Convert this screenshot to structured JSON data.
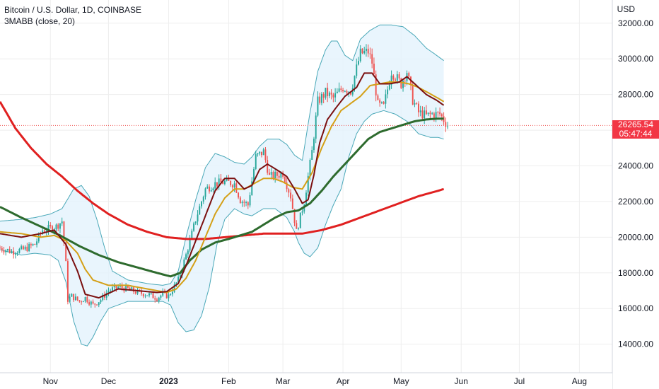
{
  "header": {
    "symbol_line": "Bitcoin / U.S. Dollar, 1D, COINBASE",
    "indicator_line": "3MABB (close, 20)"
  },
  "currency_label": "USD",
  "price_tag": {
    "price": "26265.54",
    "countdown": "05:47:44",
    "color": "#f23645"
  },
  "colors": {
    "band_fill": "#e3f2fd",
    "band_line": "#4aa8b8",
    "ma_fast": "#7b1010",
    "ma_mid": "#d4a017",
    "ma_long": "#2e6b2e",
    "ma_200": "#e02020",
    "candle_up": "#26a69a",
    "candle_down": "#ef5350",
    "grid": "#eeeeee"
  },
  "chart_data": {
    "type": "candlestick",
    "title": "Bitcoin / U.S. Dollar, 1D, COINBASE",
    "ylabel": "USD",
    "ylim": [
      12400,
      33300
    ],
    "y_ticks": [
      "32000.00",
      "30000.00",
      "28000.00",
      "26000.00",
      "24000.00",
      "22000.00",
      "20000.00",
      "18000.00",
      "16000.00",
      "14000.00"
    ],
    "x_ticks": [
      {
        "label": "Nov",
        "day": 0
      },
      {
        "label": "Dec",
        "day": 30
      },
      {
        "label": "2023",
        "day": 61
      },
      {
        "label": "Feb",
        "day": 92
      },
      {
        "label": "Mar",
        "day": 120
      },
      {
        "label": "Apr",
        "day": 151
      },
      {
        "label": "May",
        "day": 181
      },
      {
        "label": "Jun",
        "day": 212
      },
      {
        "label": "Jul",
        "day": 242
      },
      {
        "label": "Aug",
        "day": 273
      }
    ],
    "x_range_days": [
      -26,
      290
    ],
    "last_price": 26265.54,
    "close_anchors": [
      [
        -26,
        19400
      ],
      [
        -20,
        19200
      ],
      [
        -14,
        19300
      ],
      [
        -8,
        19600
      ],
      [
        -4,
        20400
      ],
      [
        0,
        20500
      ],
      [
        3,
        20600
      ],
      [
        6,
        20900
      ],
      [
        8,
        18500
      ],
      [
        9,
        16500
      ],
      [
        11,
        16700
      ],
      [
        15,
        16400
      ],
      [
        18,
        16600
      ],
      [
        22,
        16200
      ],
      [
        26,
        16500
      ],
      [
        30,
        17000
      ],
      [
        35,
        17200
      ],
      [
        40,
        17100
      ],
      [
        45,
        16900
      ],
      [
        50,
        16800
      ],
      [
        55,
        16600
      ],
      [
        58,
        16800
      ],
      [
        61,
        16700
      ],
      [
        66,
        17600
      ],
      [
        70,
        19000
      ],
      [
        75,
        21000
      ],
      [
        80,
        22700
      ],
      [
        85,
        23000
      ],
      [
        90,
        23100
      ],
      [
        95,
        23000
      ],
      [
        98,
        22100
      ],
      [
        102,
        21800
      ],
      [
        106,
        24500
      ],
      [
        110,
        24800
      ],
      [
        113,
        23400
      ],
      [
        118,
        23500
      ],
      [
        120,
        23600
      ],
      [
        124,
        22300
      ],
      [
        127,
        20300
      ],
      [
        131,
        22000
      ],
      [
        135,
        24800
      ],
      [
        138,
        27600
      ],
      [
        142,
        28100
      ],
      [
        146,
        27800
      ],
      [
        151,
        28400
      ],
      [
        155,
        28200
      ],
      [
        160,
        30300
      ],
      [
        164,
        30400
      ],
      [
        166,
        29800
      ],
      [
        169,
        27400
      ],
      [
        172,
        27300
      ],
      [
        176,
        29300
      ],
      [
        181,
        28600
      ],
      [
        184,
        29300
      ],
      [
        187,
        27700
      ],
      [
        190,
        27000
      ],
      [
        194,
        26800
      ],
      [
        197,
        26900
      ],
      [
        201,
        26900
      ],
      [
        205,
        26265
      ]
    ],
    "series": [
      {
        "name": "",
        "key": "ma_fast",
        "points": [
          [
            -26,
            20200
          ],
          [
            -15,
            20000
          ],
          [
            -5,
            20200
          ],
          [
            2,
            20400
          ],
          [
            8,
            19600
          ],
          [
            14,
            18100
          ],
          [
            18,
            16800
          ],
          [
            25,
            16600
          ],
          [
            35,
            17100
          ],
          [
            45,
            17000
          ],
          [
            55,
            16900
          ],
          [
            60,
            16950
          ],
          [
            66,
            17400
          ],
          [
            70,
            18400
          ],
          [
            75,
            19800
          ],
          [
            80,
            21200
          ],
          [
            85,
            22600
          ],
          [
            90,
            23300
          ],
          [
            95,
            23300
          ],
          [
            100,
            22700
          ],
          [
            104,
            22900
          ],
          [
            108,
            23800
          ],
          [
            112,
            24100
          ],
          [
            118,
            23700
          ],
          [
            122,
            23400
          ],
          [
            126,
            22700
          ],
          [
            130,
            21900
          ],
          [
            133,
            22100
          ],
          [
            136,
            23500
          ],
          [
            139,
            25300
          ],
          [
            143,
            26600
          ],
          [
            147,
            27200
          ],
          [
            152,
            27900
          ],
          [
            158,
            28400
          ],
          [
            162,
            29200
          ],
          [
            166,
            29200
          ],
          [
            170,
            28600
          ],
          [
            175,
            28600
          ],
          [
            180,
            28700
          ],
          [
            184,
            29000
          ],
          [
            189,
            28500
          ],
          [
            194,
            28000
          ],
          [
            199,
            27700
          ],
          [
            203,
            27400
          ]
        ]
      },
      {
        "name": "",
        "key": "ma_mid",
        "points": [
          [
            -26,
            20300
          ],
          [
            -15,
            20200
          ],
          [
            -5,
            20000
          ],
          [
            2,
            20100
          ],
          [
            8,
            19800
          ],
          [
            14,
            19100
          ],
          [
            18,
            18200
          ],
          [
            22,
            17600
          ],
          [
            30,
            17300
          ],
          [
            40,
            17300
          ],
          [
            50,
            17100
          ],
          [
            55,
            17000
          ],
          [
            60,
            16900
          ],
          [
            65,
            17100
          ],
          [
            70,
            17700
          ],
          [
            75,
            18700
          ],
          [
            80,
            20000
          ],
          [
            85,
            21300
          ],
          [
            90,
            22200
          ],
          [
            95,
            22700
          ],
          [
            100,
            22700
          ],
          [
            105,
            23000
          ],
          [
            110,
            23300
          ],
          [
            115,
            23300
          ],
          [
            120,
            23100
          ],
          [
            125,
            22800
          ],
          [
            130,
            22700
          ],
          [
            135,
            23600
          ],
          [
            140,
            25000
          ],
          [
            145,
            26200
          ],
          [
            150,
            27100
          ],
          [
            155,
            27500
          ],
          [
            160,
            27900
          ],
          [
            165,
            28500
          ],
          [
            170,
            28600
          ],
          [
            175,
            28700
          ],
          [
            180,
            28700
          ],
          [
            185,
            28600
          ],
          [
            190,
            28400
          ],
          [
            195,
            28100
          ],
          [
            200,
            27800
          ],
          [
            203,
            27600
          ]
        ]
      },
      {
        "name": "",
        "key": "ma_long",
        "points": [
          [
            -26,
            21700
          ],
          [
            -15,
            21100
          ],
          [
            -5,
            20600
          ],
          [
            5,
            20100
          ],
          [
            15,
            19500
          ],
          [
            25,
            19000
          ],
          [
            35,
            18600
          ],
          [
            45,
            18300
          ],
          [
            55,
            18000
          ],
          [
            62,
            17800
          ],
          [
            67,
            18000
          ],
          [
            72,
            18700
          ],
          [
            78,
            19300
          ],
          [
            85,
            19700
          ],
          [
            92,
            19900
          ],
          [
            98,
            20100
          ],
          [
            104,
            20300
          ],
          [
            110,
            20700
          ],
          [
            116,
            21100
          ],
          [
            122,
            21400
          ],
          [
            128,
            21500
          ],
          [
            134,
            21900
          ],
          [
            140,
            22600
          ],
          [
            146,
            23400
          ],
          [
            152,
            24100
          ],
          [
            158,
            24800
          ],
          [
            164,
            25500
          ],
          [
            170,
            25900
          ],
          [
            176,
            26100
          ],
          [
            182,
            26300
          ],
          [
            188,
            26500
          ],
          [
            194,
            26600
          ],
          [
            200,
            26650
          ],
          [
            203,
            26650
          ]
        ]
      },
      {
        "name": "",
        "key": "ma_200",
        "points": [
          [
            -26,
            27600
          ],
          [
            -18,
            26100
          ],
          [
            -10,
            25000
          ],
          [
            -2,
            24100
          ],
          [
            6,
            23400
          ],
          [
            14,
            22600
          ],
          [
            22,
            21900
          ],
          [
            30,
            21300
          ],
          [
            40,
            20700
          ],
          [
            50,
            20300
          ],
          [
            60,
            20000
          ],
          [
            70,
            19900
          ],
          [
            80,
            19900
          ],
          [
            90,
            20000
          ],
          [
            100,
            20100
          ],
          [
            110,
            20200
          ],
          [
            120,
            20200
          ],
          [
            130,
            20200
          ],
          [
            140,
            20400
          ],
          [
            150,
            20700
          ],
          [
            160,
            21100
          ],
          [
            170,
            21500
          ],
          [
            180,
            21900
          ],
          [
            190,
            22300
          ],
          [
            200,
            22600
          ],
          [
            203,
            22700
          ]
        ]
      },
      {
        "name": "",
        "key": "band_upper",
        "points": [
          [
            -26,
            20900
          ],
          [
            -15,
            21000
          ],
          [
            -8,
            21100
          ],
          [
            0,
            21300
          ],
          [
            6,
            21600
          ],
          [
            12,
            22700
          ],
          [
            16,
            22900
          ],
          [
            20,
            22300
          ],
          [
            24,
            21000
          ],
          [
            28,
            19400
          ],
          [
            32,
            18100
          ],
          [
            40,
            17600
          ],
          [
            50,
            17400
          ],
          [
            58,
            17300
          ],
          [
            62,
            17400
          ],
          [
            66,
            18100
          ],
          [
            70,
            20000
          ],
          [
            75,
            22100
          ],
          [
            80,
            23900
          ],
          [
            85,
            24700
          ],
          [
            90,
            24500
          ],
          [
            95,
            24200
          ],
          [
            100,
            24100
          ],
          [
            104,
            24500
          ],
          [
            108,
            25100
          ],
          [
            112,
            25500
          ],
          [
            118,
            25500
          ],
          [
            122,
            25200
          ],
          [
            126,
            24600
          ],
          [
            130,
            24300
          ],
          [
            134,
            27000
          ],
          [
            138,
            29300
          ],
          [
            142,
            30500
          ],
          [
            145,
            31000
          ],
          [
            148,
            31000
          ],
          [
            152,
            30200
          ],
          [
            156,
            29900
          ],
          [
            160,
            31100
          ],
          [
            165,
            31600
          ],
          [
            170,
            31900
          ],
          [
            176,
            31900
          ],
          [
            182,
            31800
          ],
          [
            188,
            31300
          ],
          [
            194,
            30600
          ],
          [
            198,
            30300
          ],
          [
            203,
            29900
          ]
        ]
      },
      {
        "name": "",
        "key": "band_lower",
        "points": [
          [
            -26,
            19300
          ],
          [
            -15,
            19000
          ],
          [
            -8,
            19100
          ],
          [
            0,
            19000
          ],
          [
            4,
            18700
          ],
          [
            8,
            17500
          ],
          [
            12,
            15300
          ],
          [
            16,
            14000
          ],
          [
            19,
            13900
          ],
          [
            22,
            14400
          ],
          [
            26,
            15300
          ],
          [
            30,
            16000
          ],
          [
            40,
            16400
          ],
          [
            50,
            16400
          ],
          [
            58,
            16400
          ],
          [
            62,
            16200
          ],
          [
            66,
            15200
          ],
          [
            70,
            14700
          ],
          [
            74,
            14800
          ],
          [
            78,
            15600
          ],
          [
            82,
            17200
          ],
          [
            86,
            19600
          ],
          [
            90,
            21000
          ],
          [
            95,
            21600
          ],
          [
            100,
            21300
          ],
          [
            104,
            21200
          ],
          [
            110,
            21600
          ],
          [
            116,
            21600
          ],
          [
            122,
            21100
          ],
          [
            126,
            20300
          ],
          [
            128,
            19700
          ],
          [
            131,
            19100
          ],
          [
            134,
            18900
          ],
          [
            138,
            19400
          ],
          [
            142,
            20700
          ],
          [
            146,
            21800
          ],
          [
            150,
            22700
          ],
          [
            154,
            24500
          ],
          [
            158,
            25800
          ],
          [
            162,
            26500
          ],
          [
            166,
            26900
          ],
          [
            172,
            27100
          ],
          [
            178,
            26900
          ],
          [
            184,
            26500
          ],
          [
            190,
            25800
          ],
          [
            196,
            25600
          ],
          [
            200,
            25600
          ],
          [
            203,
            25500
          ]
        ]
      }
    ]
  }
}
